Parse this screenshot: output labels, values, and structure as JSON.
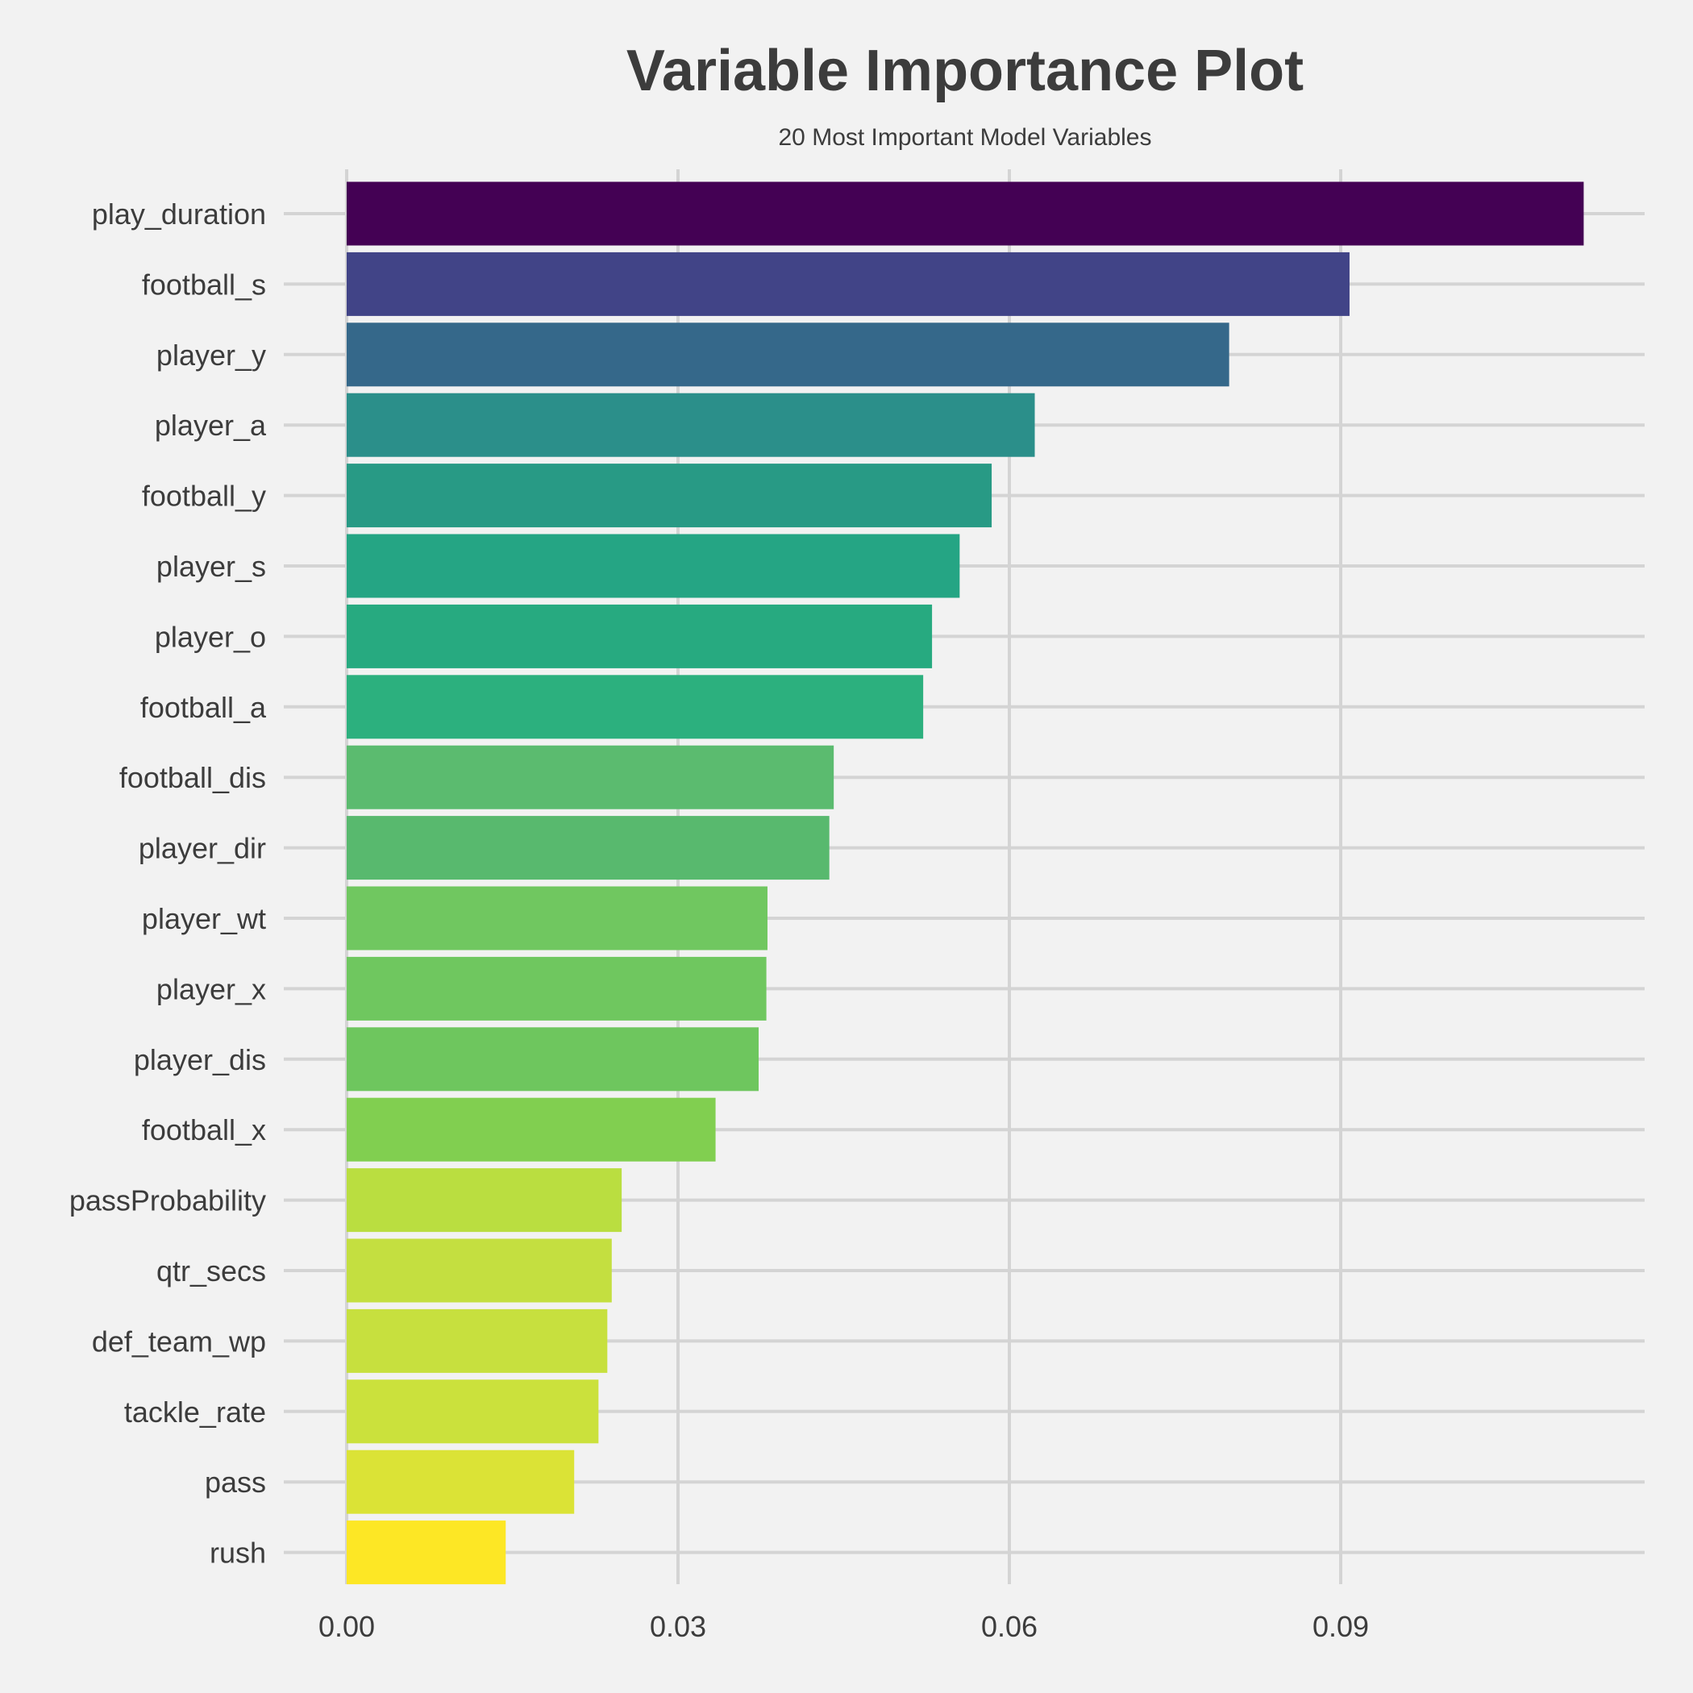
{
  "chart_data": {
    "type": "bar",
    "orientation": "horizontal",
    "title": "Variable Importance Plot",
    "subtitle": "20 Most Important Model Variables",
    "xlabel": "",
    "ylabel": "",
    "xlim": [
      0,
      0.1175
    ],
    "x_ticks": [
      0.0,
      0.03,
      0.06,
      0.09
    ],
    "x_tick_labels": [
      "0.00",
      "0.03",
      "0.06",
      "0.09"
    ],
    "grid": true,
    "legend": "none",
    "categories": [
      "play_duration",
      "football_s",
      "player_y",
      "player_a",
      "football_y",
      "player_s",
      "player_o",
      "football_a",
      "football_dis",
      "player_dir",
      "player_wt",
      "player_x",
      "player_dis",
      "football_x",
      "passProbability",
      "qtr_secs",
      "def_team_wp",
      "tackle_rate",
      "pass",
      "rush"
    ],
    "values": [
      0.112,
      0.0908,
      0.0799,
      0.0623,
      0.0584,
      0.0555,
      0.053,
      0.0522,
      0.0441,
      0.0437,
      0.0381,
      0.038,
      0.0373,
      0.0334,
      0.0249,
      0.024,
      0.0236,
      0.0228,
      0.0206,
      0.0144
    ],
    "colors": [
      "#440154",
      "#414487",
      "#35688a",
      "#2b8f8a",
      "#289a85",
      "#25a584",
      "#27aa80",
      "#2cb07e",
      "#5bbb6f",
      "#58b96e",
      "#70c760",
      "#6fc75f",
      "#6ec65e",
      "#81cf50",
      "#bade40",
      "#c4df40",
      "#c7e03e",
      "#cbe13c",
      "#dbe336",
      "#fde725"
    ]
  }
}
